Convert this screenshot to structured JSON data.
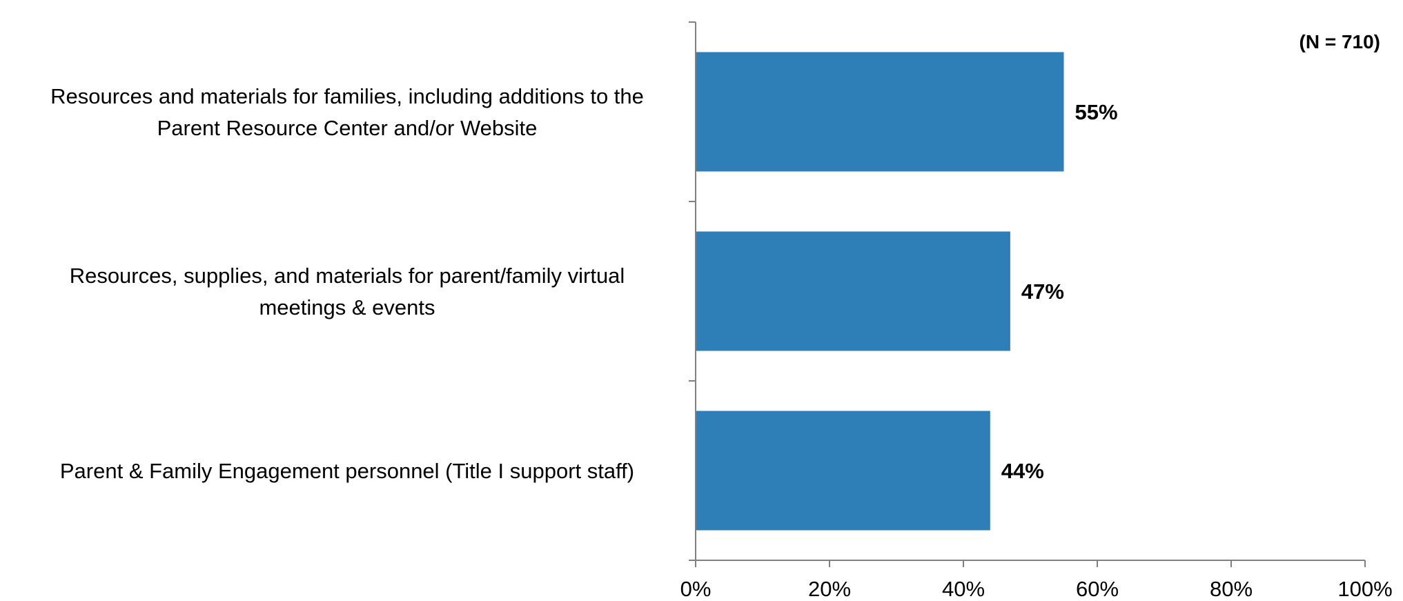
{
  "chart_data": {
    "type": "bar",
    "orientation": "horizontal",
    "note": "(N = 710)",
    "categories": [
      [
        "Resources and materials for families, including additions to the",
        "Parent Resource Center and/or Website"
      ],
      [
        "Resources, supplies, and materials for parent/family virtual",
        "meetings & events"
      ],
      [
        "Parent & Family Engagement personnel (Title I support staff)"
      ]
    ],
    "values": [
      55,
      47,
      44
    ],
    "value_labels": [
      "55%",
      "47%",
      "44%"
    ],
    "xlim": [
      0,
      100
    ],
    "xticks": [
      "0%",
      "20%",
      "40%",
      "60%",
      "80%",
      "100%"
    ],
    "grid": false,
    "bar_color": "#2E7FB8",
    "axis_color": "#808080"
  }
}
